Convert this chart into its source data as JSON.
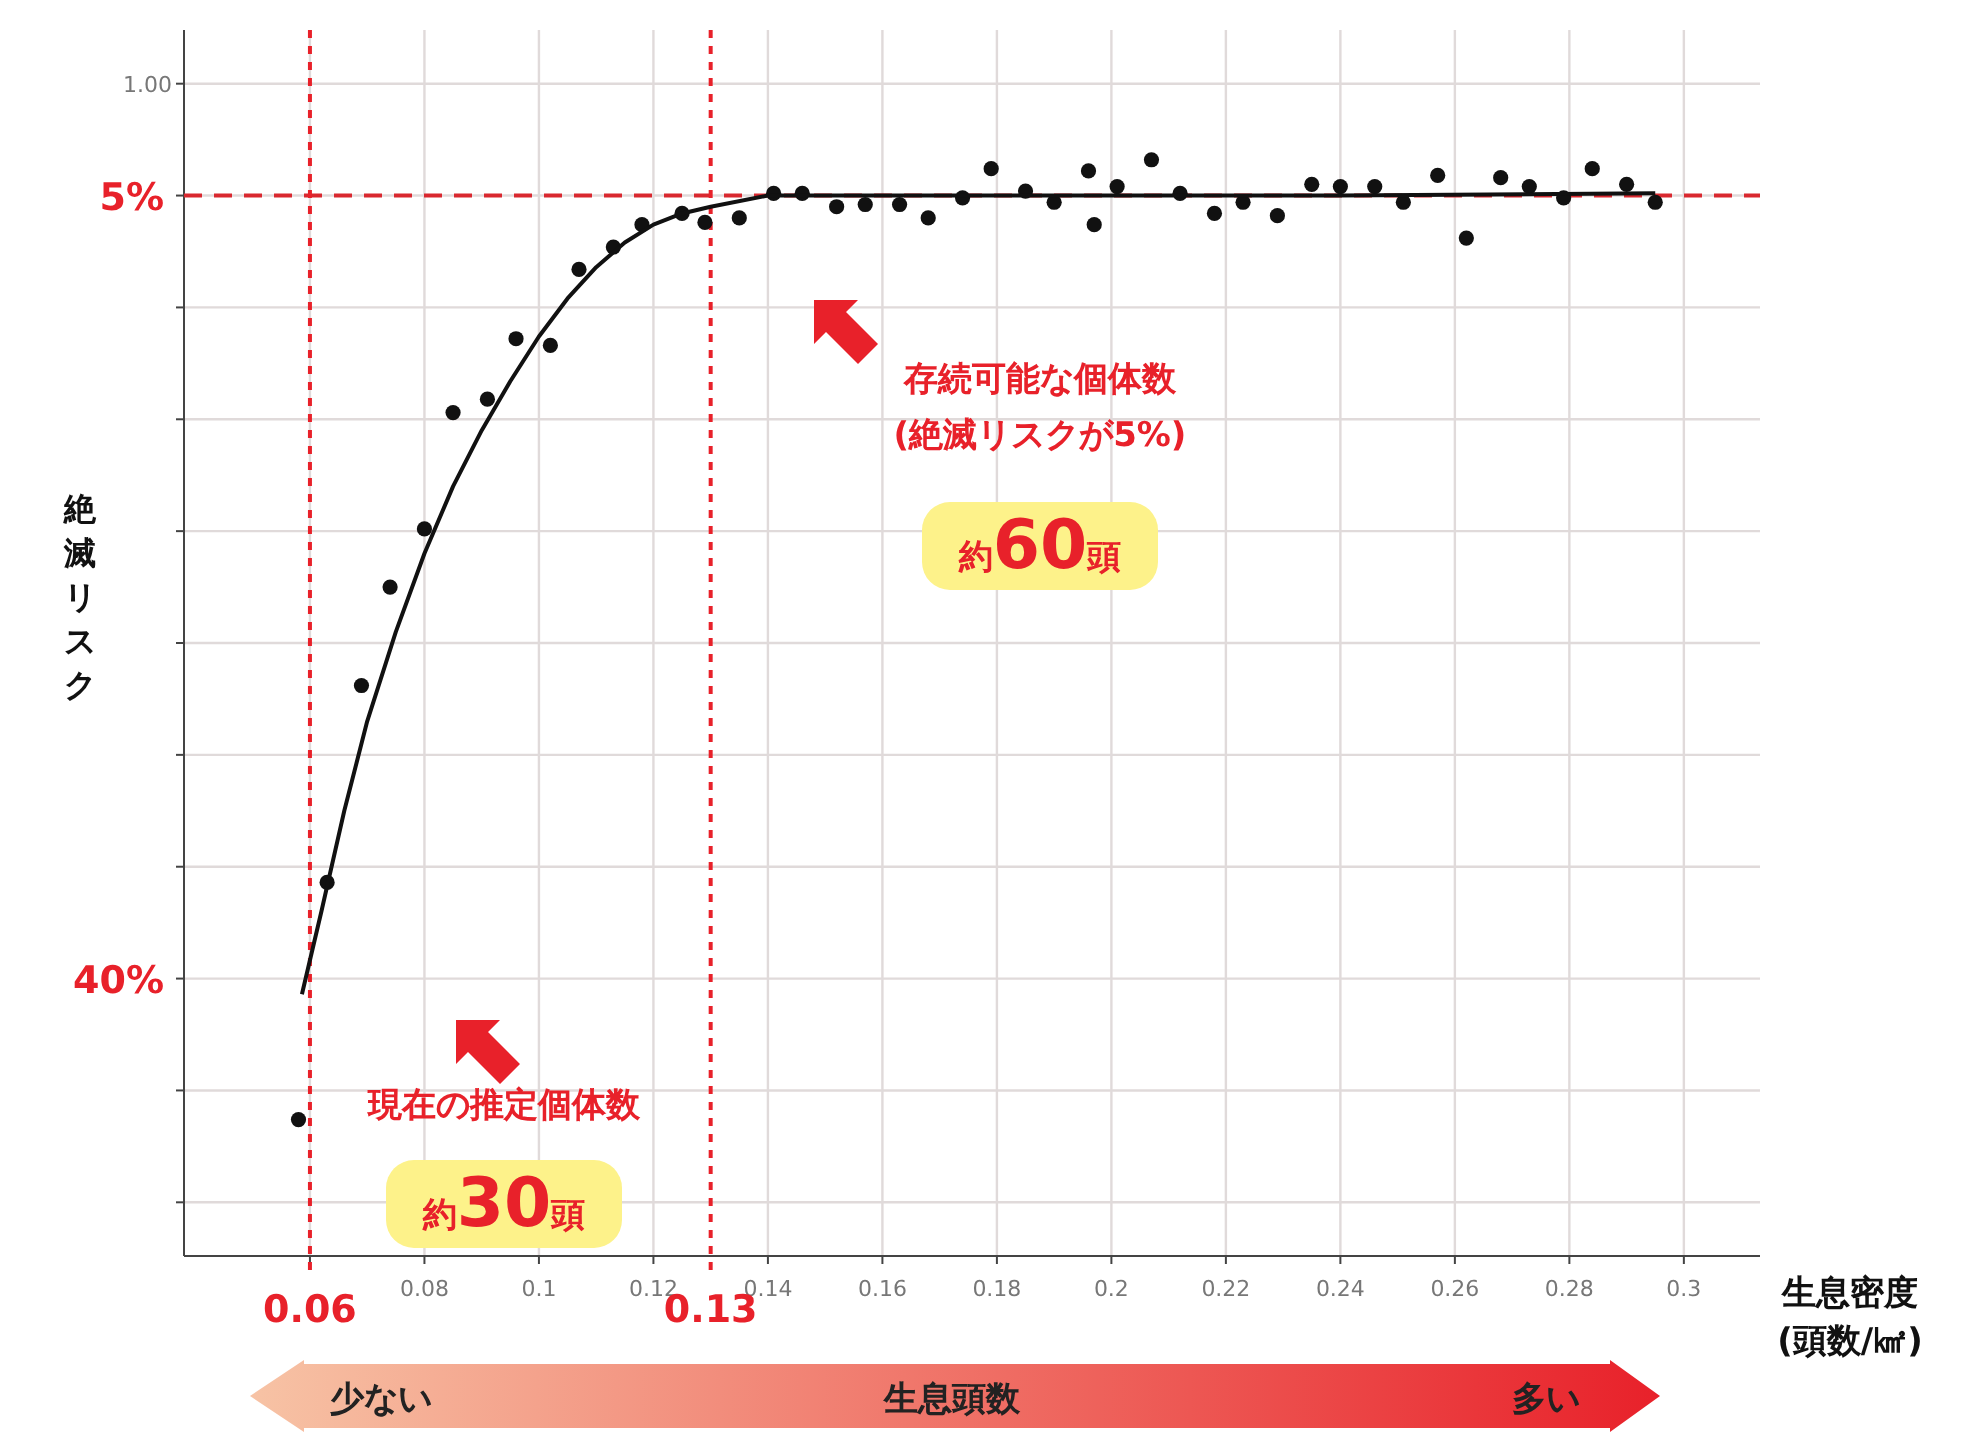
{
  "chart_data": {
    "type": "scatter",
    "ylabel": "絶滅リスク",
    "xlabel": "生息密度\n(頭数/㎢)",
    "xlim": [
      0.038,
      0.3133
    ],
    "ylim": [
      52.4,
      -2.4
    ],
    "xticks": [
      {
        "value": 0.06,
        "label": null
      },
      0.08,
      0.1,
      0.12,
      0.14,
      0.16,
      0.18,
      0.2,
      0.22,
      0.24,
      0.26,
      0.28,
      0.3
    ],
    "yticks": [
      {
        "value": 0,
        "label": null
      },
      {
        "value": 5,
        "label": "5%"
      },
      {
        "value": 10,
        "label": null
      },
      {
        "value": 15,
        "label": null
      },
      {
        "value": 20,
        "label": null
      },
      {
        "value": 25,
        "label": null
      },
      {
        "value": 30,
        "label": null
      },
      {
        "value": 35,
        "label": null
      },
      {
        "value": 40,
        "label": "40%"
      },
      {
        "value": 45,
        "label": null
      },
      {
        "value": 50,
        "label": null
      }
    ],
    "grid": true,
    "marker": "circle",
    "series": [
      {
        "type": "scatter",
        "color": "#111111",
        "x": [
          0.058,
          0.063,
          0.069,
          0.074,
          0.08,
          0.085,
          0.091,
          0.096,
          0.102,
          0.107,
          0.113,
          0.118,
          0.125,
          0.129,
          0.135,
          0.141,
          0.146,
          0.152,
          0.157,
          0.163,
          0.168,
          0.174,
          0.179,
          0.185,
          0.19,
          0.196,
          0.197,
          0.201,
          0.207,
          0.212,
          0.218,
          0.223,
          0.229,
          0.235,
          0.24,
          0.246,
          0.251,
          0.257,
          0.262,
          0.268,
          0.273,
          0.279,
          0.284,
          0.29,
          0.295
        ],
        "values": [
          46.3,
          35.7,
          26.9,
          22.5,
          19.9,
          14.7,
          14.1,
          11.4,
          11.7,
          8.3,
          7.3,
          6.3,
          5.8,
          6.2,
          6.0,
          4.9,
          4.9,
          5.5,
          5.4,
          5.4,
          6.0,
          5.1,
          3.8,
          4.8,
          5.3,
          3.9,
          6.3,
          4.6,
          3.4,
          4.9,
          5.8,
          5.3,
          5.9,
          4.5,
          4.6,
          4.6,
          5.3,
          4.1,
          6.9,
          4.2,
          4.6,
          5.1,
          3.8,
          4.5,
          5.3
        ]
      },
      {
        "type": "line",
        "color": "#111111",
        "marker": "none",
        "line_style": "solid",
        "x": [
          0.0586,
          0.062,
          0.066,
          0.07,
          0.075,
          0.08,
          0.085,
          0.09,
          0.095,
          0.1,
          0.105,
          0.11,
          0.115,
          0.12,
          0.125,
          0.13,
          0.14,
          0.16,
          0.2,
          0.24,
          0.295
        ],
        "values": [
          40.7,
          37.0,
          32.5,
          28.5,
          24.5,
          21.0,
          18.0,
          15.5,
          13.3,
          11.3,
          9.6,
          8.2,
          7.1,
          6.3,
          5.8,
          5.5,
          5.0,
          5.0,
          5.0,
          5.0,
          4.9
        ]
      }
    ],
    "ref_lines": [
      {
        "axis": "y",
        "value": 5,
        "color": "#d9282f",
        "line_style": "dashed"
      },
      {
        "axis": "x",
        "value": 0.06,
        "label": "0.06",
        "color": "#e8212a",
        "line_style": "dotted"
      },
      {
        "axis": "x",
        "value": 0.13,
        "label": "0.13",
        "color": "#e8212a",
        "line_style": "dotted"
      }
    ],
    "annotations": [
      "存続可能な個体数\n(絶滅リスクが5%)",
      "約60頭",
      "現在の推定個体数",
      "約30頭",
      "少ない",
      "生息頭数",
      "多い",
      "1.00"
    ]
  }
}
